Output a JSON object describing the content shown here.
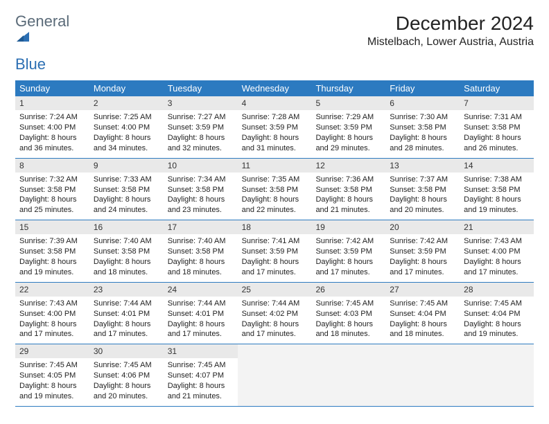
{
  "logo": {
    "text1": "General",
    "text2": "Blue"
  },
  "header": {
    "title": "December 2024",
    "location": "Mistelbach, Lower Austria, Austria"
  },
  "style": {
    "header_bg": "#2c7ac0",
    "header_text": "#ffffff",
    "row_divider": "#2c7ac0",
    "daynum_bg": "#e9e9e9",
    "empty_bg": "#f3f3f3",
    "body_font_size": 11,
    "daynum_font_size": 12,
    "dow_font_size": 13,
    "title_font_size": 28,
    "location_font_size": 16,
    "logo_font_size": 22,
    "logo_color1": "#5a6a78",
    "logo_color2": "#2c6fb3"
  },
  "days_of_week": [
    "Sunday",
    "Monday",
    "Tuesday",
    "Wednesday",
    "Thursday",
    "Friday",
    "Saturday"
  ],
  "weeks": [
    [
      {
        "n": "1",
        "sunrise": "Sunrise: 7:24 AM",
        "sunset": "Sunset: 4:00 PM",
        "daylight": "Daylight: 8 hours and 36 minutes."
      },
      {
        "n": "2",
        "sunrise": "Sunrise: 7:25 AM",
        "sunset": "Sunset: 4:00 PM",
        "daylight": "Daylight: 8 hours and 34 minutes."
      },
      {
        "n": "3",
        "sunrise": "Sunrise: 7:27 AM",
        "sunset": "Sunset: 3:59 PM",
        "daylight": "Daylight: 8 hours and 32 minutes."
      },
      {
        "n": "4",
        "sunrise": "Sunrise: 7:28 AM",
        "sunset": "Sunset: 3:59 PM",
        "daylight": "Daylight: 8 hours and 31 minutes."
      },
      {
        "n": "5",
        "sunrise": "Sunrise: 7:29 AM",
        "sunset": "Sunset: 3:59 PM",
        "daylight": "Daylight: 8 hours and 29 minutes."
      },
      {
        "n": "6",
        "sunrise": "Sunrise: 7:30 AM",
        "sunset": "Sunset: 3:58 PM",
        "daylight": "Daylight: 8 hours and 28 minutes."
      },
      {
        "n": "7",
        "sunrise": "Sunrise: 7:31 AM",
        "sunset": "Sunset: 3:58 PM",
        "daylight": "Daylight: 8 hours and 26 minutes."
      }
    ],
    [
      {
        "n": "8",
        "sunrise": "Sunrise: 7:32 AM",
        "sunset": "Sunset: 3:58 PM",
        "daylight": "Daylight: 8 hours and 25 minutes."
      },
      {
        "n": "9",
        "sunrise": "Sunrise: 7:33 AM",
        "sunset": "Sunset: 3:58 PM",
        "daylight": "Daylight: 8 hours and 24 minutes."
      },
      {
        "n": "10",
        "sunrise": "Sunrise: 7:34 AM",
        "sunset": "Sunset: 3:58 PM",
        "daylight": "Daylight: 8 hours and 23 minutes."
      },
      {
        "n": "11",
        "sunrise": "Sunrise: 7:35 AM",
        "sunset": "Sunset: 3:58 PM",
        "daylight": "Daylight: 8 hours and 22 minutes."
      },
      {
        "n": "12",
        "sunrise": "Sunrise: 7:36 AM",
        "sunset": "Sunset: 3:58 PM",
        "daylight": "Daylight: 8 hours and 21 minutes."
      },
      {
        "n": "13",
        "sunrise": "Sunrise: 7:37 AM",
        "sunset": "Sunset: 3:58 PM",
        "daylight": "Daylight: 8 hours and 20 minutes."
      },
      {
        "n": "14",
        "sunrise": "Sunrise: 7:38 AM",
        "sunset": "Sunset: 3:58 PM",
        "daylight": "Daylight: 8 hours and 19 minutes."
      }
    ],
    [
      {
        "n": "15",
        "sunrise": "Sunrise: 7:39 AM",
        "sunset": "Sunset: 3:58 PM",
        "daylight": "Daylight: 8 hours and 19 minutes."
      },
      {
        "n": "16",
        "sunrise": "Sunrise: 7:40 AM",
        "sunset": "Sunset: 3:58 PM",
        "daylight": "Daylight: 8 hours and 18 minutes."
      },
      {
        "n": "17",
        "sunrise": "Sunrise: 7:40 AM",
        "sunset": "Sunset: 3:58 PM",
        "daylight": "Daylight: 8 hours and 18 minutes."
      },
      {
        "n": "18",
        "sunrise": "Sunrise: 7:41 AM",
        "sunset": "Sunset: 3:59 PM",
        "daylight": "Daylight: 8 hours and 17 minutes."
      },
      {
        "n": "19",
        "sunrise": "Sunrise: 7:42 AM",
        "sunset": "Sunset: 3:59 PM",
        "daylight": "Daylight: 8 hours and 17 minutes."
      },
      {
        "n": "20",
        "sunrise": "Sunrise: 7:42 AM",
        "sunset": "Sunset: 3:59 PM",
        "daylight": "Daylight: 8 hours and 17 minutes."
      },
      {
        "n": "21",
        "sunrise": "Sunrise: 7:43 AM",
        "sunset": "Sunset: 4:00 PM",
        "daylight": "Daylight: 8 hours and 17 minutes."
      }
    ],
    [
      {
        "n": "22",
        "sunrise": "Sunrise: 7:43 AM",
        "sunset": "Sunset: 4:00 PM",
        "daylight": "Daylight: 8 hours and 17 minutes."
      },
      {
        "n": "23",
        "sunrise": "Sunrise: 7:44 AM",
        "sunset": "Sunset: 4:01 PM",
        "daylight": "Daylight: 8 hours and 17 minutes."
      },
      {
        "n": "24",
        "sunrise": "Sunrise: 7:44 AM",
        "sunset": "Sunset: 4:01 PM",
        "daylight": "Daylight: 8 hours and 17 minutes."
      },
      {
        "n": "25",
        "sunrise": "Sunrise: 7:44 AM",
        "sunset": "Sunset: 4:02 PM",
        "daylight": "Daylight: 8 hours and 17 minutes."
      },
      {
        "n": "26",
        "sunrise": "Sunrise: 7:45 AM",
        "sunset": "Sunset: 4:03 PM",
        "daylight": "Daylight: 8 hours and 18 minutes."
      },
      {
        "n": "27",
        "sunrise": "Sunrise: 7:45 AM",
        "sunset": "Sunset: 4:04 PM",
        "daylight": "Daylight: 8 hours and 18 minutes."
      },
      {
        "n": "28",
        "sunrise": "Sunrise: 7:45 AM",
        "sunset": "Sunset: 4:04 PM",
        "daylight": "Daylight: 8 hours and 19 minutes."
      }
    ],
    [
      {
        "n": "29",
        "sunrise": "Sunrise: 7:45 AM",
        "sunset": "Sunset: 4:05 PM",
        "daylight": "Daylight: 8 hours and 19 minutes."
      },
      {
        "n": "30",
        "sunrise": "Sunrise: 7:45 AM",
        "sunset": "Sunset: 4:06 PM",
        "daylight": "Daylight: 8 hours and 20 minutes."
      },
      {
        "n": "31",
        "sunrise": "Sunrise: 7:45 AM",
        "sunset": "Sunset: 4:07 PM",
        "daylight": "Daylight: 8 hours and 21 minutes."
      },
      null,
      null,
      null,
      null
    ]
  ]
}
